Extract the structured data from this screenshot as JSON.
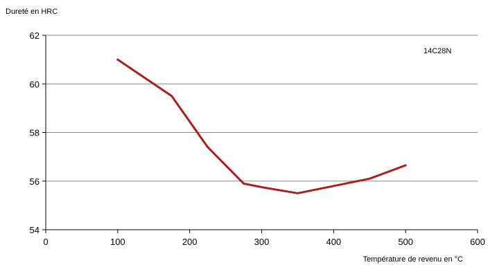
{
  "chart_data": {
    "type": "line",
    "title": "",
    "xlabel": "Température de revenu en °C",
    "ylabel": "Dureté en HRC",
    "xlim": [
      0,
      600
    ],
    "ylim": [
      54,
      62
    ],
    "x_ticks": [
      0,
      100,
      200,
      300,
      400,
      500,
      600
    ],
    "y_ticks": [
      54,
      56,
      58,
      60,
      62
    ],
    "grid": "horizontal",
    "legend": "none",
    "annotations": [
      {
        "text": "14C28N"
      }
    ],
    "series": [
      {
        "name": "14C28N",
        "color": "#b01c1c",
        "x": [
          100,
          175,
          225,
          275,
          300,
          350,
          400,
          450,
          500
        ],
        "y": [
          61.0,
          59.5,
          57.4,
          55.9,
          55.75,
          55.5,
          55.8,
          56.1,
          56.65
        ]
      }
    ]
  }
}
